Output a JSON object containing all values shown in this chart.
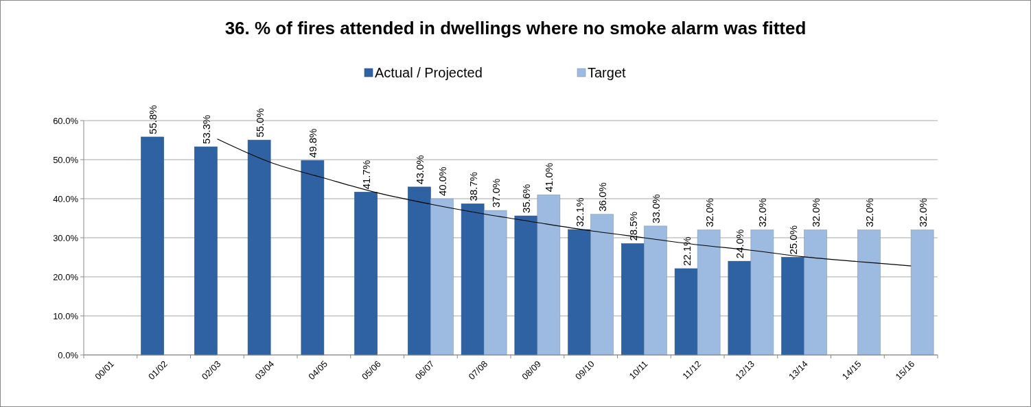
{
  "chart_data": {
    "type": "bar",
    "title": "36. % of fires attended in dwellings where no smoke alarm was fitted",
    "categories": [
      "00/01",
      "01/02",
      "02/03",
      "03/04",
      "04/05",
      "05/06",
      "06/07",
      "07/08",
      "08/09",
      "09/10",
      "10/11",
      "11/12",
      "12/13",
      "13/14",
      "14/15",
      "15/16"
    ],
    "series": [
      {
        "name": "Actual / Projected",
        "color": "#2f62a3",
        "values": [
          null,
          55.8,
          53.3,
          55.0,
          49.8,
          41.7,
          43.0,
          38.7,
          35.6,
          32.1,
          28.5,
          22.1,
          24.0,
          25.0,
          null,
          null
        ],
        "value_labels": [
          null,
          "55.8%",
          "53.3%",
          "55.0%",
          "49.8%",
          "41.7%",
          "43.0%",
          "38.7%",
          "35.6%",
          "32.1%",
          "28.5%",
          "22.1%",
          "24.0%",
          "25.0%",
          null,
          null
        ]
      },
      {
        "name": "Target",
        "color": "#9dbbe0",
        "values": [
          null,
          null,
          null,
          null,
          null,
          null,
          40.0,
          37.0,
          41.0,
          36.0,
          33.0,
          32.0,
          32.0,
          32.0,
          32.0,
          32.0
        ],
        "value_labels": [
          null,
          null,
          null,
          null,
          null,
          null,
          "40.0%",
          "37.0%",
          "41.0%",
          "36.0%",
          "33.0%",
          "32.0%",
          "32.0%",
          "32.0%",
          "32.0%",
          "32.0%"
        ]
      },
      {
        "type": "line",
        "color": "#000000",
        "values": [
          null,
          null,
          55.3,
          49.3,
          45.3,
          41.5,
          38.6,
          36.1,
          33.9,
          31.8,
          30.0,
          28.2,
          26.8,
          25.1,
          23.9,
          22.8
        ]
      }
    ],
    "ylim": [
      0,
      60
    ],
    "yticks": [
      {
        "value": 0,
        "label": "0.0%"
      },
      {
        "value": 10,
        "label": "10.0%"
      },
      {
        "value": 20,
        "label": "20.0%"
      },
      {
        "value": 30,
        "label": "30.0%"
      },
      {
        "value": 40,
        "label": "40.0%"
      },
      {
        "value": 50,
        "label": "50.0%"
      },
      {
        "value": 60,
        "label": "60.0%"
      }
    ],
    "grid": "y",
    "legend": "top"
  }
}
